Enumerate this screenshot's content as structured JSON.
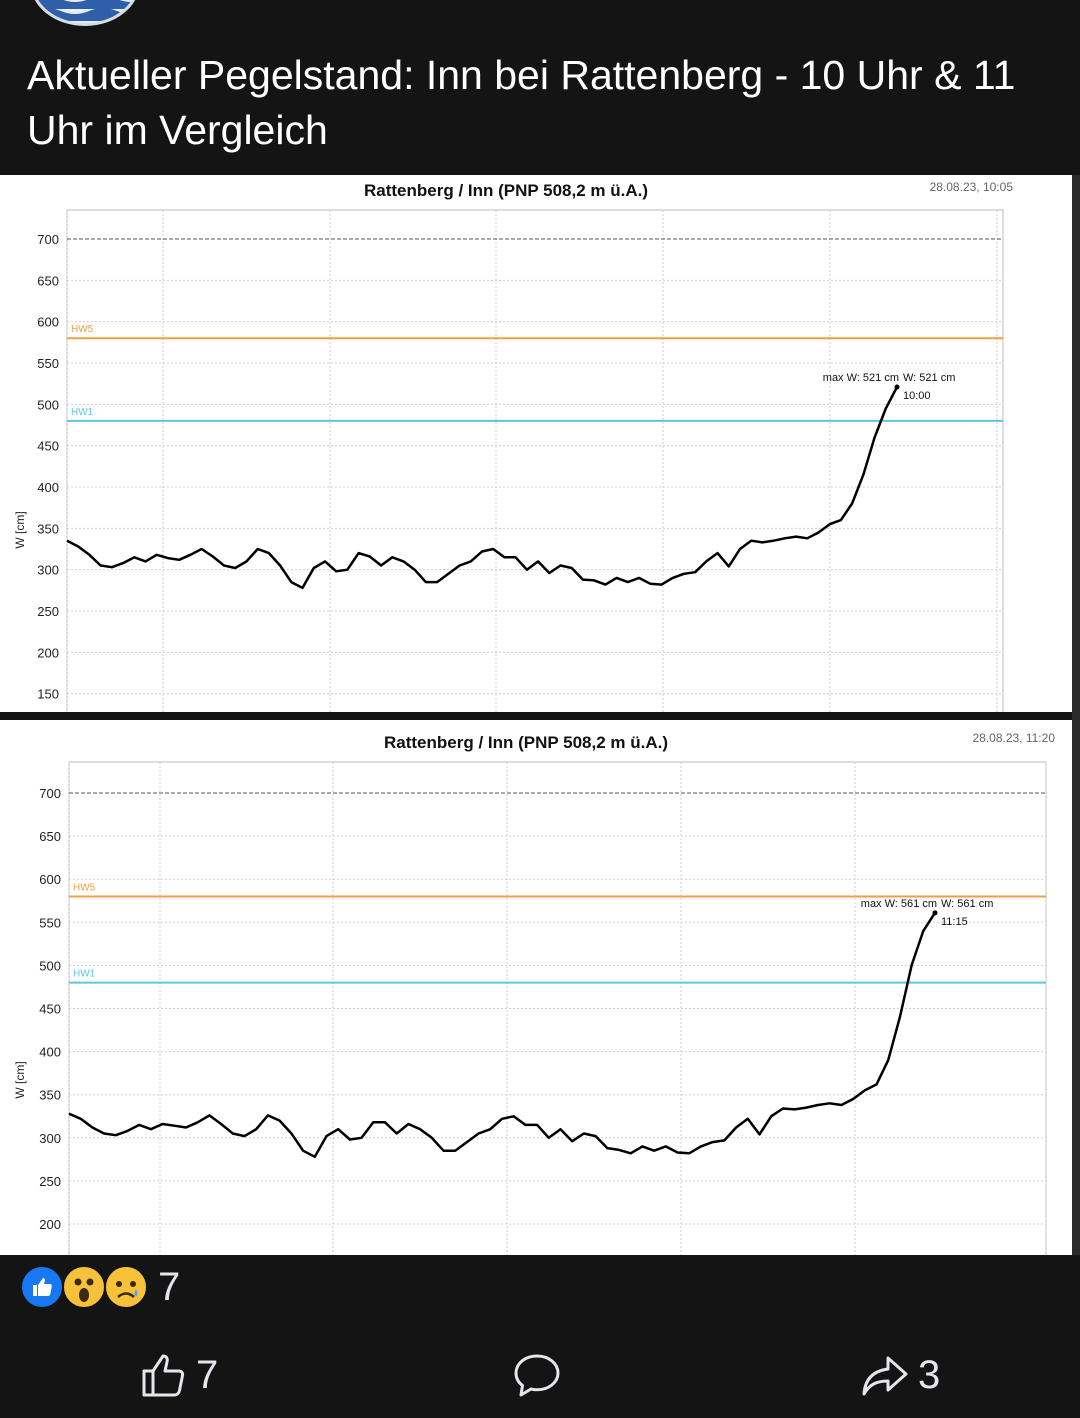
{
  "post": {
    "title": "Aktueller Pegelstand: Inn bei Rattenberg - 10 Uhr & 11 Uhr im Vergleich"
  },
  "reactions": {
    "count": "7",
    "icons": [
      "like-icon",
      "wow-face-icon",
      "sad-face-icon"
    ]
  },
  "actions": {
    "like_count": "7",
    "share_count": "3"
  },
  "colors": {
    "hw5": "#f0a040",
    "hw1": "#5bc8e0",
    "series": "#000000"
  },
  "chart_data": [
    {
      "type": "line",
      "title": "Rattenberg / Inn (PNP 508,2 m ü.A.)",
      "timestamp": "28.08.23, 10:05",
      "ylabel": "W [cm]",
      "yticks": [
        150,
        200,
        250,
        300,
        350,
        400,
        450,
        500,
        550,
        600,
        650,
        700
      ],
      "ylim": [
        140,
        735
      ],
      "hw5_label": "HW5",
      "hw5": 580,
      "hw1_label": "HW1",
      "hw1": 480,
      "max_label": "max W: 521 cm",
      "current_label": "W: 521 cm",
      "time_label": "10:00",
      "series": [
        {
          "values": [
            335,
            328,
            318,
            305,
            303,
            308,
            315,
            310,
            318,
            314,
            312,
            318,
            325,
            316,
            305,
            302,
            310,
            325,
            320,
            305,
            285,
            278,
            302,
            310,
            298,
            300,
            320,
            316,
            305,
            315,
            310,
            300,
            285,
            285,
            295,
            305,
            310,
            322,
            325,
            315,
            315,
            300,
            310,
            296,
            305,
            302,
            288,
            287,
            282,
            290,
            285,
            290,
            283,
            282,
            290,
            295,
            297,
            310,
            320,
            304,
            325,
            335,
            333,
            335,
            338,
            340,
            338,
            345,
            355,
            360,
            380,
            415,
            460,
            495,
            521
          ]
        }
      ]
    },
    {
      "type": "line",
      "title": "Rattenberg / Inn (PNP 508,2 m ü.A.)",
      "timestamp": "28.08.23, 11:20",
      "ylabel": "W [cm]",
      "yticks": [
        200,
        250,
        300,
        350,
        400,
        450,
        500,
        550,
        600,
        650,
        700
      ],
      "ylim": [
        160,
        735
      ],
      "hw5_label": "HW5",
      "hw5": 580,
      "hw1_label": "HW1",
      "hw1": 480,
      "max_label": "max W: 561 cm",
      "current_label": "W: 561 cm",
      "time_label": "11:15",
      "series": [
        {
          "values": [
            328,
            322,
            312,
            305,
            303,
            308,
            315,
            310,
            316,
            314,
            312,
            318,
            326,
            316,
            305,
            302,
            310,
            326,
            320,
            305,
            285,
            278,
            302,
            310,
            298,
            300,
            318,
            318,
            305,
            316,
            310,
            300,
            285,
            285,
            295,
            305,
            310,
            322,
            325,
            315,
            315,
            300,
            310,
            296,
            305,
            302,
            288,
            286,
            282,
            290,
            285,
            290,
            283,
            282,
            290,
            295,
            297,
            312,
            322,
            304,
            325,
            334,
            333,
            335,
            338,
            340,
            338,
            345,
            355,
            362,
            390,
            440,
            500,
            540,
            561
          ]
        }
      ]
    }
  ]
}
